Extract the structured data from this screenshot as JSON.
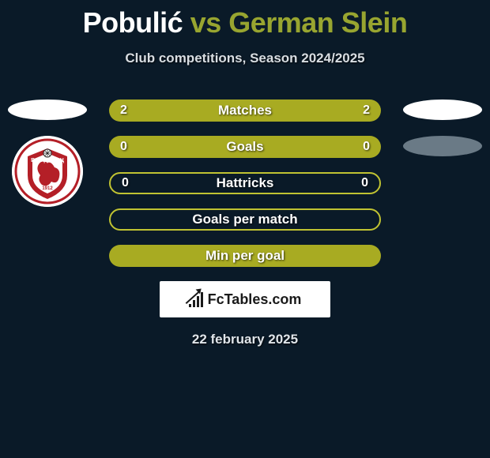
{
  "title": {
    "player1": "Pobulić",
    "vs": " vs ",
    "player2": "German Slein"
  },
  "subtitle": "Club competitions, Season 2024/2025",
  "date": "22 february 2025",
  "colors": {
    "background": "#0a1a28",
    "olive": "#a8ab22",
    "olive_border": "#c0c332",
    "white": "#ffffff",
    "gray": "#6a7a86"
  },
  "rows": [
    {
      "label": "Matches",
      "left": "2",
      "right": "2",
      "fill": "olive",
      "border": "none"
    },
    {
      "label": "Goals",
      "left": "0",
      "right": "0",
      "fill": "olive",
      "border": "none"
    },
    {
      "label": "Hattricks",
      "left": "0",
      "right": "0",
      "fill": "none",
      "border": "olive"
    },
    {
      "label": "Goals per match",
      "left": "",
      "right": "",
      "fill": "none",
      "border": "olive"
    },
    {
      "label": "Min per goal",
      "left": "",
      "right": "",
      "fill": "olive",
      "border": "none"
    }
  ],
  "sides": {
    "left": {
      "ovals": [
        {
          "color": "white"
        }
      ],
      "crest": true
    },
    "right": {
      "ovals": [
        {
          "color": "white"
        },
        {
          "color": "gray"
        }
      ],
      "crest": false
    }
  },
  "watermark": {
    "text": "FcTables.com"
  }
}
